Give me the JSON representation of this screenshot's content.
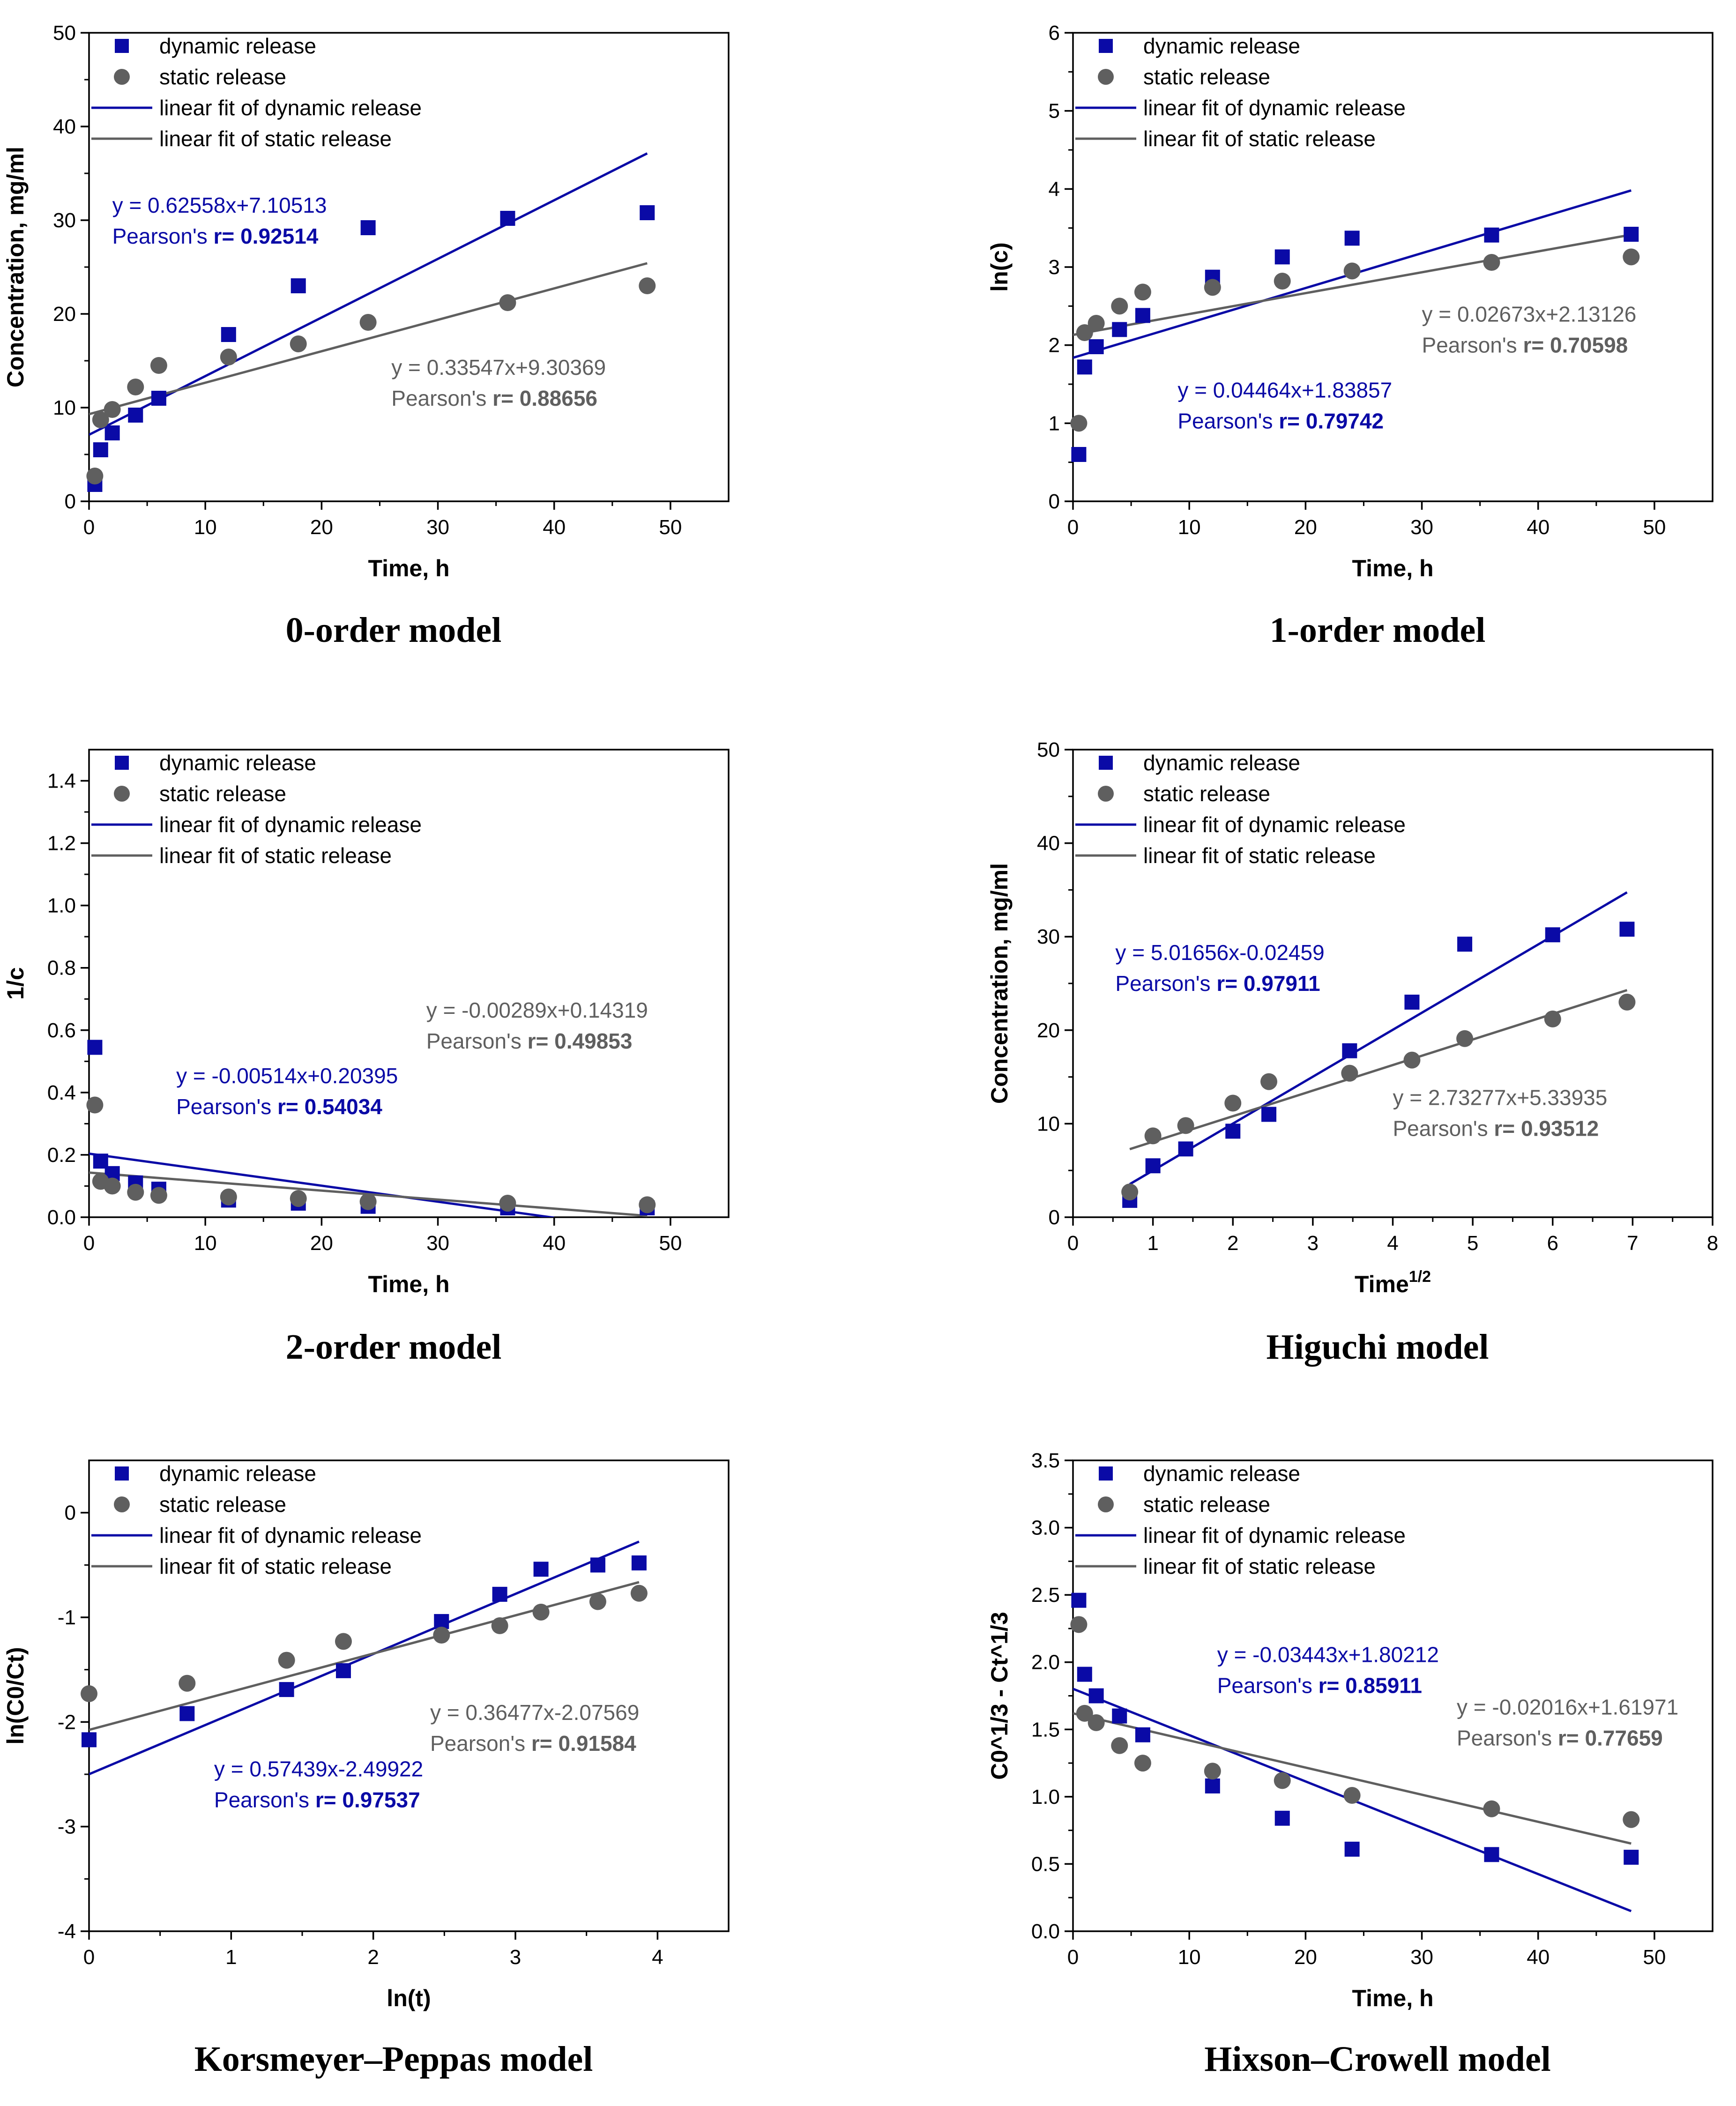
{
  "colors": {
    "dynamic": "#0a0aa6",
    "static": "#5f5f5f",
    "axis": "#000000"
  },
  "chart_data": [
    {
      "type": "scatter",
      "caption": "0-order model",
      "xlabel": "Time, h",
      "ylabel": "Concentration, mg/ml",
      "xlim": [
        0,
        55
      ],
      "ylim": [
        0,
        50
      ],
      "xticks": [
        0,
        10,
        20,
        30,
        40,
        50
      ],
      "yticks": [
        0,
        10,
        20,
        30,
        40,
        50
      ],
      "ytick_labels": [
        "0",
        "10",
        "20",
        "30",
        "40",
        "50"
      ],
      "legend": [
        "dynamic release",
        "static release",
        "linear fit of dynamic release",
        "linear fit of static release"
      ],
      "legend_position": "top-left",
      "series": [
        {
          "name": "dynamic release",
          "x": [
            0.5,
            1,
            2,
            4,
            6,
            12,
            18,
            24,
            36,
            48
          ],
          "y": [
            1.8,
            5.5,
            7.3,
            9.2,
            11.0,
            17.8,
            23.0,
            29.2,
            30.2,
            30.8
          ]
        },
        {
          "name": "static release",
          "x": [
            0.5,
            1,
            2,
            4,
            6,
            12,
            18,
            24,
            36,
            48
          ],
          "y": [
            2.7,
            8.7,
            9.8,
            12.2,
            14.5,
            15.4,
            16.8,
            19.1,
            21.2,
            23.0
          ]
        }
      ],
      "fits": [
        {
          "name": "linear fit of dynamic release",
          "slope": 0.62558,
          "intercept": 7.10513,
          "x_range": [
            0,
            48
          ]
        },
        {
          "name": "linear fit of static release",
          "slope": 0.33547,
          "intercept": 9.30369,
          "x_range": [
            0,
            48
          ]
        }
      ],
      "annotations": [
        {
          "series": "dynamic",
          "equation": "y = 0.62558x+7.10513",
          "pearson_label": "Pearson's ",
          "pearson_value": "r= 0.92514",
          "at": [
            2,
            30.8
          ]
        },
        {
          "series": "static",
          "equation": "y = 0.33547x+9.30369",
          "pearson_label": "Pearson's ",
          "pearson_value": "r= 0.88656",
          "at": [
            26,
            13.5
          ]
        }
      ]
    },
    {
      "type": "scatter",
      "caption": "1-order model",
      "xlabel": "Time, h",
      "ylabel": "ln(c)",
      "xlim": [
        0,
        55
      ],
      "ylim": [
        0,
        6
      ],
      "xticks": [
        0,
        10,
        20,
        30,
        40,
        50
      ],
      "yticks": [
        0,
        1,
        2,
        3,
        4,
        5,
        6
      ],
      "ytick_labels": [
        "0",
        "1",
        "2",
        "3",
        "4",
        "5",
        "6"
      ],
      "legend": [
        "dynamic release",
        "static release",
        "linear fit of dynamic release",
        "linear fit of static release"
      ],
      "legend_position": "top-left",
      "series": [
        {
          "name": "dynamic release",
          "x": [
            0.5,
            1,
            2,
            4,
            6,
            12,
            18,
            24,
            36,
            48
          ],
          "y": [
            0.6,
            1.72,
            1.98,
            2.2,
            2.38,
            2.87,
            3.13,
            3.37,
            3.41,
            3.42
          ]
        },
        {
          "name": "static release",
          "x": [
            0.5,
            1,
            2,
            4,
            6,
            12,
            18,
            24,
            36,
            48
          ],
          "y": [
            1.0,
            2.16,
            2.28,
            2.5,
            2.68,
            2.74,
            2.82,
            2.95,
            3.06,
            3.13
          ]
        }
      ],
      "fits": [
        {
          "name": "linear fit of dynamic release",
          "slope": 0.04464,
          "intercept": 1.83857,
          "x_range": [
            0,
            48
          ]
        },
        {
          "name": "linear fit of static release",
          "slope": 0.02673,
          "intercept": 2.13126,
          "x_range": [
            0,
            48
          ]
        }
      ],
      "annotations": [
        {
          "series": "static",
          "equation": "y = 0.02673x+2.13126",
          "pearson_label": "Pearson's ",
          "pearson_value": "r= 0.70598",
          "at": [
            30,
            2.3
          ]
        },
        {
          "series": "dynamic",
          "equation": "y = 0.04464x+1.83857",
          "pearson_label": "Pearson's ",
          "pearson_value": "r= 0.79742",
          "at": [
            9,
            1.33
          ]
        }
      ]
    },
    {
      "type": "scatter",
      "caption": "2-order model",
      "xlabel": "Time, h",
      "ylabel": "1/c",
      "xlim": [
        0,
        55
      ],
      "ylim": [
        0,
        1.5
      ],
      "xticks": [
        0,
        10,
        20,
        30,
        40,
        50
      ],
      "yticks": [
        0,
        0.2,
        0.4,
        0.6,
        0.8,
        1.0,
        1.2,
        1.4
      ],
      "ytick_labels": [
        "0.0",
        "0.2",
        "0.4",
        "0.6",
        "0.8",
        "1.0",
        "1.2",
        "1.4"
      ],
      "legend": [
        "dynamic release",
        "static release",
        "linear fit of dynamic release",
        "linear fit of static release"
      ],
      "legend_position": "top-left",
      "series": [
        {
          "name": "dynamic release",
          "x": [
            0.5,
            1,
            2,
            4,
            6,
            12,
            18,
            24,
            36,
            48
          ],
          "y": [
            0.545,
            0.18,
            0.14,
            0.11,
            0.09,
            0.055,
            0.045,
            0.035,
            0.03,
            0.03
          ]
        },
        {
          "name": "static release",
          "x": [
            0.5,
            1,
            2,
            4,
            6,
            12,
            18,
            24,
            36,
            48
          ],
          "y": [
            0.36,
            0.115,
            0.1,
            0.08,
            0.07,
            0.065,
            0.06,
            0.05,
            0.045,
            0.04
          ]
        }
      ],
      "fits": [
        {
          "name": "linear fit of dynamic release",
          "slope": -0.00514,
          "intercept": 0.20395,
          "x_range": [
            0,
            40
          ]
        },
        {
          "name": "linear fit of static release",
          "slope": -0.00289,
          "intercept": 0.14319,
          "x_range": [
            0,
            48
          ]
        }
      ],
      "annotations": [
        {
          "series": "static",
          "equation": "y = -0.00289x+0.14319",
          "pearson_label": "Pearson's ",
          "pearson_value": "r= 0.49853",
          "at": [
            29,
            0.64
          ]
        },
        {
          "series": "dynamic",
          "equation": "y = -0.00514x+0.20395",
          "pearson_label": "Pearson's ",
          "pearson_value": "r= 0.54034",
          "at": [
            7.5,
            0.43
          ]
        }
      ]
    },
    {
      "type": "scatter",
      "caption": "Higuchi model",
      "xlabel": "Time",
      "xlabel_sup": "1/2",
      "ylabel": "Concentration, mg/ml",
      "xlim": [
        0,
        8
      ],
      "ylim": [
        0,
        50
      ],
      "xticks": [
        0,
        1,
        2,
        3,
        4,
        5,
        6,
        7,
        8
      ],
      "yticks": [
        0,
        10,
        20,
        30,
        40,
        50
      ],
      "ytick_labels": [
        "0",
        "10",
        "20",
        "30",
        "40",
        "50"
      ],
      "legend": [
        "dynamic release",
        "static release",
        "linear fit of dynamic release",
        "linear fit of static release"
      ],
      "legend_position": "top-left",
      "series": [
        {
          "name": "dynamic release",
          "x": [
            0.71,
            1.0,
            1.41,
            2.0,
            2.45,
            3.46,
            4.24,
            4.9,
            6.0,
            6.93
          ],
          "y": [
            1.8,
            5.5,
            7.3,
            9.2,
            11.0,
            17.8,
            23.0,
            29.2,
            30.2,
            30.8
          ]
        },
        {
          "name": "static release",
          "x": [
            0.71,
            1.0,
            1.41,
            2.0,
            2.45,
            3.46,
            4.24,
            4.9,
            6.0,
            6.93
          ],
          "y": [
            2.7,
            8.7,
            9.8,
            12.2,
            14.5,
            15.4,
            16.8,
            19.1,
            21.2,
            23.0
          ]
        }
      ],
      "fits": [
        {
          "name": "linear fit of dynamic release",
          "slope": 5.01656,
          "intercept": -0.02459,
          "x_range": [
            0.71,
            6.93
          ]
        },
        {
          "name": "linear fit of static release",
          "slope": 2.73277,
          "intercept": 5.33935,
          "x_range": [
            0.71,
            6.93
          ]
        }
      ],
      "annotations": [
        {
          "series": "dynamic",
          "equation": "y = 5.01656x-0.02459",
          "pearson_label": "Pearson's ",
          "pearson_value": "r= 0.97911",
          "at": [
            0.53,
            27.5
          ]
        },
        {
          "series": "static",
          "equation": "y = 2.73277x+5.33935",
          "pearson_label": "Pearson's ",
          "pearson_value": "r= 0.93512",
          "at": [
            4.0,
            12.0
          ]
        }
      ]
    },
    {
      "type": "scatter",
      "caption": "Korsmeyer–Peppas model",
      "xlabel": "ln(t)",
      "ylabel": "ln(C0/Ct)",
      "xlim": [
        0,
        4.5
      ],
      "ylim": [
        -4,
        0.5
      ],
      "xticks": [
        0,
        1,
        2,
        3,
        4
      ],
      "yticks": [
        -4,
        -3,
        -2,
        -1,
        0
      ],
      "ytick_labels": [
        "-4",
        "-3",
        "-2",
        "-1",
        "0"
      ],
      "legend": [
        "dynamic release",
        "static release",
        "linear fit of dynamic release",
        "linear fit of static release"
      ],
      "legend_position": "top-left",
      "series": [
        {
          "name": "dynamic release",
          "x": [
            0.0,
            0.69,
            1.39,
            1.79,
            2.48,
            2.89,
            3.18,
            3.58,
            3.87
          ],
          "y": [
            -2.17,
            -1.92,
            -1.69,
            -1.51,
            -1.04,
            -0.78,
            -0.54,
            -0.5,
            -0.48
          ]
        },
        {
          "name": "static release",
          "x": [
            0.0,
            0.69,
            1.39,
            1.79,
            2.48,
            2.89,
            3.18,
            3.58,
            3.87
          ],
          "y": [
            -1.73,
            -1.63,
            -1.41,
            -1.23,
            -1.17,
            -1.08,
            -0.95,
            -0.85,
            -0.77
          ]
        }
      ],
      "fits": [
        {
          "name": "linear fit of dynamic release",
          "slope": 0.57439,
          "intercept": -2.49922,
          "x_range": [
            0,
            3.87
          ]
        },
        {
          "name": "linear fit of static release",
          "slope": 0.36477,
          "intercept": -2.07569,
          "x_range": [
            0,
            3.87
          ]
        }
      ],
      "annotations": [
        {
          "series": "static",
          "equation": "y = 0.36477x-2.07569",
          "pearson_label": "Pearson's ",
          "pearson_value": "r= 0.91584",
          "at": [
            2.4,
            -1.98
          ]
        },
        {
          "series": "dynamic",
          "equation": "y = 0.57439x-2.49922",
          "pearson_label": "Pearson's ",
          "pearson_value": "r= 0.97537",
          "at": [
            0.88,
            -2.52
          ]
        }
      ]
    },
    {
      "type": "scatter",
      "caption": "Hixson–Crowell model",
      "xlabel": "Time, h",
      "ylabel": "C0^1/3 - Ct^1/3",
      "xlim": [
        0,
        55
      ],
      "ylim": [
        0,
        3.5
      ],
      "xticks": [
        0,
        10,
        20,
        30,
        40,
        50
      ],
      "yticks": [
        0,
        0.5,
        1.0,
        1.5,
        2.0,
        2.5,
        3.0,
        3.5
      ],
      "ytick_labels": [
        "0.0",
        "0.5",
        "1.0",
        "1.5",
        "2.0",
        "2.5",
        "3.0",
        "3.5"
      ],
      "legend": [
        "dynamic release",
        "static release",
        "linear fit of dynamic release",
        "linear fit of static release"
      ],
      "legend_position": "top-left",
      "series": [
        {
          "name": "dynamic release",
          "x": [
            0.5,
            1,
            2,
            4,
            6,
            12,
            18,
            24,
            36,
            48
          ],
          "y": [
            2.46,
            1.91,
            1.75,
            1.6,
            1.46,
            1.08,
            0.84,
            0.61,
            0.57,
            0.55
          ]
        },
        {
          "name": "static release",
          "x": [
            0.5,
            1,
            2,
            4,
            6,
            12,
            18,
            24,
            36,
            48
          ],
          "y": [
            2.28,
            1.62,
            1.55,
            1.38,
            1.25,
            1.19,
            1.12,
            1.01,
            0.91,
            0.83
          ]
        }
      ],
      "fits": [
        {
          "name": "linear fit of dynamic release",
          "slope": -0.03443,
          "intercept": 1.80212,
          "x_range": [
            0,
            48
          ]
        },
        {
          "name": "linear fit of static release",
          "slope": -0.02016,
          "intercept": 1.61971,
          "x_range": [
            0,
            48
          ]
        }
      ],
      "annotations": [
        {
          "series": "dynamic",
          "equation": "y = -0.03443x+1.80212",
          "pearson_label": "Pearson's ",
          "pearson_value": "r= 0.85911",
          "at": [
            12.4,
            2.0
          ]
        },
        {
          "series": "static",
          "equation": "y = -0.02016x+1.61971",
          "pearson_label": "Pearson's ",
          "pearson_value": "r= 0.77659",
          "at": [
            33,
            1.61
          ]
        }
      ]
    }
  ]
}
